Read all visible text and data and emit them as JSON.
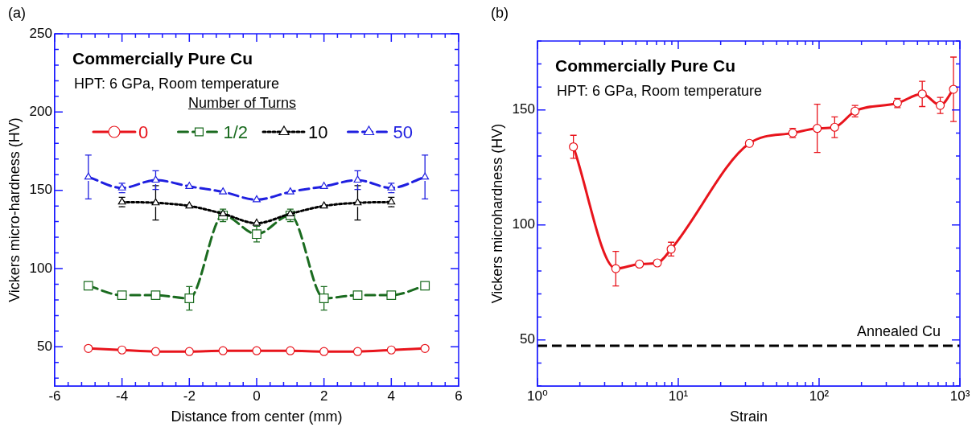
{
  "chart_data": [
    {
      "type": "line",
      "title": "Commercially Pure Cu",
      "subtitle": "HPT: 6 GPa, Room temperature",
      "xlabel": "Distance from center (mm)",
      "ylabel": "Vickers micro-hardness (HV)",
      "legend_title": "Number of Turns",
      "legend": "top",
      "annotations": [
        "(a)"
      ],
      "xlim": [
        -6,
        6
      ],
      "xticks": [
        -6,
        -4,
        -2,
        0,
        2,
        4,
        6
      ],
      "ylim": [
        25,
        250
      ],
      "yticks": [
        50,
        100,
        150,
        200,
        250
      ],
      "grid": false,
      "series": [
        {
          "name": "0",
          "color": "#e8141c",
          "marker": "circle",
          "line_style": "solid",
          "x": [
            -5,
            -4,
            -3,
            -2,
            -1,
            0,
            1,
            2,
            3,
            4,
            5
          ],
          "values": [
            49,
            48,
            47,
            47,
            47.5,
            47.5,
            47.5,
            47,
            47,
            48,
            49
          ]
        },
        {
          "name": "1/2",
          "color": "#1a6b1f",
          "marker": "square",
          "line_style": "dashed",
          "x": [
            -5,
            -4,
            -3,
            -2,
            -1,
            0,
            1,
            2,
            3,
            4,
            5
          ],
          "values": [
            89,
            83,
            83,
            81,
            134,
            122,
            134,
            81,
            83,
            83,
            89
          ],
          "errors": [
            null,
            null,
            null,
            7.5,
            4,
            5,
            4,
            7.5,
            null,
            null,
            null
          ]
        },
        {
          "name": "10",
          "color": "#000000",
          "marker": "triangle",
          "line_style": "dotted",
          "x": [
            -4,
            -3,
            -2,
            -1,
            0,
            1,
            2,
            3,
            4
          ],
          "values": [
            142.5,
            142,
            140,
            135,
            129,
            135,
            140,
            142,
            142.5
          ],
          "errors": [
            3,
            11,
            null,
            null,
            null,
            null,
            null,
            11,
            3
          ]
        },
        {
          "name": "50",
          "color": "#1f1fe0",
          "marker": "triangle",
          "line_style": "dashed",
          "x": [
            -5,
            -4,
            -3,
            -2,
            -1,
            0,
            1,
            2,
            3,
            4,
            5
          ],
          "values": [
            158.5,
            151.5,
            156.5,
            152.5,
            149,
            144,
            149,
            152.5,
            156.5,
            151.5,
            158.5
          ],
          "errors": [
            14,
            3,
            6,
            null,
            null,
            null,
            null,
            null,
            6,
            3,
            14
          ]
        }
      ]
    },
    {
      "type": "line",
      "title": "Commercially Pure Cu",
      "subtitle": "HPT: 6 GPa, Room temperature",
      "xlabel": "Strain",
      "ylabel": "Vickers microhardness (HV)",
      "annotations": [
        "(b)"
      ],
      "log": "x",
      "xlim": [
        1,
        1000
      ],
      "xticks": [
        {
          "value": 1,
          "label": "10⁰"
        },
        {
          "value": 10,
          "label": "10¹"
        },
        {
          "value": 100,
          "label": "10²"
        },
        {
          "value": 1000,
          "label": "10³"
        }
      ],
      "ylim": [
        30,
        180
      ],
      "yticks": [
        50,
        100,
        150
      ],
      "grid": false,
      "legend": false,
      "ref_lines": [
        {
          "axis": "y",
          "value": 47.5,
          "label": "Annealed Cu",
          "color": "#000000",
          "line_style": "dashed"
        }
      ],
      "series": [
        {
          "color": "#e8141c",
          "marker": "circle",
          "line_style": "solid",
          "x": [
            1.8,
            3.6,
            5.3,
            7.1,
            8.9,
            32,
            65,
            97,
            129,
            180,
            360,
            540,
            725,
            900
          ],
          "values": [
            134,
            81,
            83,
            83.5,
            89.5,
            135.5,
            140,
            142,
            142.5,
            149.5,
            153,
            157,
            152,
            159
          ],
          "errors": [
            5,
            7.5,
            null,
            null,
            3,
            null,
            2,
            10.5,
            4.5,
            2.5,
            2,
            5.5,
            3.5,
            14
          ]
        }
      ]
    }
  ]
}
